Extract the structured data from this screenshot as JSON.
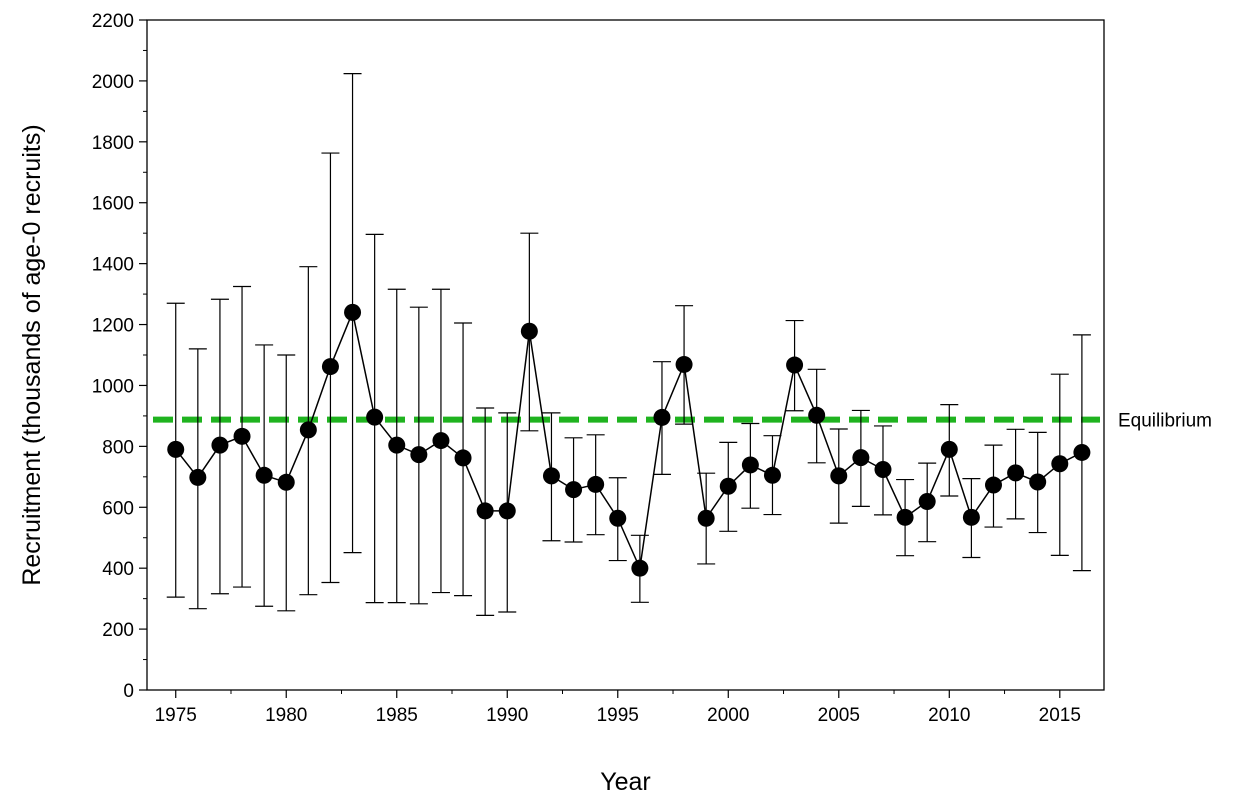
{
  "chart_data": {
    "type": "line",
    "title": "",
    "xlabel": "Year",
    "ylabel": "Recruitment (thousands of age-0 recruits)",
    "xlim": [
      1973.7,
      1977.0
    ],
    "ylim": [
      0,
      2200
    ],
    "x_ticks": [
      1975,
      1980,
      1985,
      1990,
      1995,
      2000,
      2005,
      2010,
      2015
    ],
    "y_ticks": [
      0,
      200,
      400,
      600,
      800,
      1000,
      1200,
      1400,
      1600,
      1800,
      2000,
      2200
    ],
    "grid": false,
    "legend": "none",
    "series": [
      {
        "marker": "filled-circle",
        "color": "#000000",
        "x": [
          1975,
          1976,
          1977,
          1978,
          1979,
          1980,
          1981,
          1982,
          1983,
          1984,
          1985,
          1986,
          1987,
          1988,
          1989,
          1990,
          1991,
          1992,
          1993,
          1994,
          1995,
          1996,
          1997,
          1998,
          1999,
          2000,
          2001,
          2002,
          2003,
          2004,
          2005,
          2006,
          2007,
          2008,
          2009,
          2010,
          2011,
          2012,
          2013,
          2014,
          2015,
          2016
        ],
        "values": [
          790,
          698,
          804,
          833,
          705,
          682,
          854,
          1062,
          1240,
          896,
          804,
          773,
          819,
          762,
          588,
          588,
          1178,
          703,
          658,
          675,
          564,
          400,
          895,
          1069,
          564,
          669,
          739,
          705,
          1067,
          902,
          703,
          763,
          724,
          567,
          619,
          790,
          567,
          673,
          713,
          683,
          743,
          780
        ],
        "error_upper": [
          1270,
          1120,
          1283,
          1325,
          1133,
          1100,
          1390,
          1763,
          2024,
          1496,
          1316,
          1257,
          1316,
          1205,
          926,
          910,
          1500,
          910,
          828,
          838,
          697,
          508,
          1078,
          1262,
          712,
          813,
          875,
          835,
          1213,
          1053,
          857,
          918,
          867,
          691,
          745,
          937,
          694,
          804,
          856,
          846,
          1037,
          1166
        ],
        "error_lower": [
          305,
          267,
          316,
          338,
          275,
          260,
          313,
          353,
          451,
          287,
          287,
          283,
          320,
          310,
          245,
          256,
          851,
          490,
          486,
          510,
          425,
          288,
          708,
          873,
          414,
          521,
          597,
          576,
          917,
          746,
          548,
          603,
          575,
          441,
          487,
          637,
          435,
          535,
          562,
          517,
          442,
          392
        ]
      }
    ],
    "reference_lines": [
      {
        "label": "Equilibrium",
        "value": 888,
        "color": "#1fb31f",
        "style": "dashed"
      }
    ]
  }
}
